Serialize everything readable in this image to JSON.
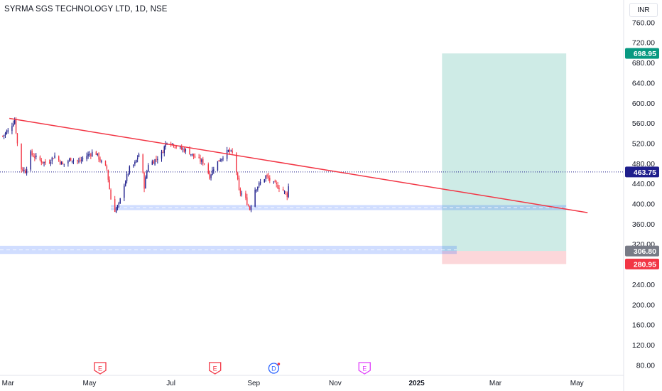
{
  "header": {
    "symbol_title": "SYRMA SGS TECHNOLOGY LTD, 1D, NSE",
    "currency": "INR"
  },
  "chart_data": {
    "type": "candlestick",
    "title": "SYRMA SGS TECHNOLOGY LTD, 1D, NSE",
    "ylim": [
      60,
      805
    ],
    "y_ticks": [
      80,
      120,
      160,
      200,
      240,
      280,
      320,
      360,
      400,
      440,
      480,
      520,
      560,
      600,
      640,
      680,
      720,
      760
    ],
    "y_tick_labels": [
      "80.00",
      "120.00",
      "160.00",
      "200.00",
      "240.00",
      "280.00",
      "320.00",
      "360.00",
      "400.00",
      "440.00",
      "480.00",
      "520.00",
      "560.00",
      "600.00",
      "640.00",
      "680.00",
      "720.00",
      "760.00"
    ],
    "x_tick_labels": [
      "Mar",
      "May",
      "Jul",
      "Sep",
      "Nov",
      "2025",
      "Mar",
      "May"
    ],
    "x_ticks": [
      "2024-03-01",
      "2024-05-01",
      "2024-07-01",
      "2024-09-01",
      "2024-11-01",
      "2025-01-01",
      "2025-03-01",
      "2025-05-01"
    ],
    "x_range": [
      "2024-02-24",
      "2025-06-05"
    ],
    "price_series": {
      "name": "price",
      "points": [
        [
          "2024-02-26",
          535
        ],
        [
          "2024-03-02",
          548
        ],
        [
          "2024-03-06",
          568
        ],
        [
          "2024-03-10",
          472
        ],
        [
          "2024-03-14",
          465
        ],
        [
          "2024-03-18",
          500
        ],
        [
          "2024-03-24",
          488
        ],
        [
          "2024-03-30",
          480
        ],
        [
          "2024-04-05",
          496
        ],
        [
          "2024-04-11",
          478
        ],
        [
          "2024-04-17",
          490
        ],
        [
          "2024-04-23",
          484
        ],
        [
          "2024-04-29",
          496
        ],
        [
          "2024-05-05",
          505
        ],
        [
          "2024-05-11",
          478
        ],
        [
          "2024-05-14",
          470
        ],
        [
          "2024-05-17",
          410
        ],
        [
          "2024-05-19",
          385
        ],
        [
          "2024-05-23",
          398
        ],
        [
          "2024-05-27",
          440
        ],
        [
          "2024-05-31",
          470
        ],
        [
          "2024-06-04",
          480
        ],
        [
          "2024-06-08",
          506
        ],
        [
          "2024-06-11",
          435
        ],
        [
          "2024-06-14",
          480
        ],
        [
          "2024-06-18",
          485
        ],
        [
          "2024-06-24",
          500
        ],
        [
          "2024-06-28",
          526
        ],
        [
          "2024-07-02",
          520
        ],
        [
          "2024-07-08",
          510
        ],
        [
          "2024-07-14",
          505
        ],
        [
          "2024-07-20",
          490
        ],
        [
          "2024-07-26",
          482
        ],
        [
          "2024-07-30",
          455
        ],
        [
          "2024-08-03",
          478
        ],
        [
          "2024-08-09",
          495
        ],
        [
          "2024-08-13",
          505
        ],
        [
          "2024-08-16",
          500
        ],
        [
          "2024-08-19",
          465
        ],
        [
          "2024-08-21",
          425
        ],
        [
          "2024-08-25",
          415
        ],
        [
          "2024-08-29",
          390
        ],
        [
          "2024-09-02",
          430
        ],
        [
          "2024-09-06",
          442
        ],
        [
          "2024-09-10",
          455
        ],
        [
          "2024-09-16",
          440
        ],
        [
          "2024-09-22",
          430
        ],
        [
          "2024-09-26",
          418
        ],
        [
          "2024-09-29",
          468
        ]
      ],
      "up_color": "#1e1e8c",
      "down_color": "#f23645"
    },
    "last_price": 463.75,
    "price_labels": [
      {
        "label": "698.95",
        "value": 698.95,
        "color": "#089981"
      },
      {
        "label": "463.75",
        "value": 463.75,
        "color": "#1e1e8c"
      },
      {
        "label": "306.80",
        "value": 306.8,
        "color": "#787b86"
      },
      {
        "label": "280.95",
        "value": 280.95,
        "color": "#f23645"
      }
    ],
    "trendline": {
      "start": [
        "2024-03-02",
        570
      ],
      "end": [
        "2025-05-09",
        383
      ],
      "color": "#f23645"
    },
    "support_zones": [
      {
        "name": "support-zone-upper",
        "x_start": "2024-05-17",
        "x_end": "2025-04-23",
        "y_low": 388,
        "y_high": 398
      },
      {
        "name": "support-zone-lower",
        "x_start": "2024-02-24",
        "x_end": "2025-01-31",
        "y_low": 301,
        "y_high": 317
      }
    ],
    "long_position": {
      "x_start": "2025-01-20",
      "x_end": "2025-04-23",
      "target": 698.95,
      "entry": 306.8,
      "stop": 280.95,
      "profit_color": "#089981",
      "loss_color": "#f23645"
    },
    "event_markers": [
      {
        "date": "2024-05-09",
        "label": "E",
        "color": "#f23645"
      },
      {
        "date": "2024-08-03",
        "label": "E",
        "color": "#f23645"
      },
      {
        "date": "2024-09-16",
        "label": "D",
        "color": "#2962ff"
      },
      {
        "date": "2024-11-23",
        "label": "E",
        "color": "#e040fb"
      }
    ],
    "grid": false,
    "legend": "none"
  }
}
